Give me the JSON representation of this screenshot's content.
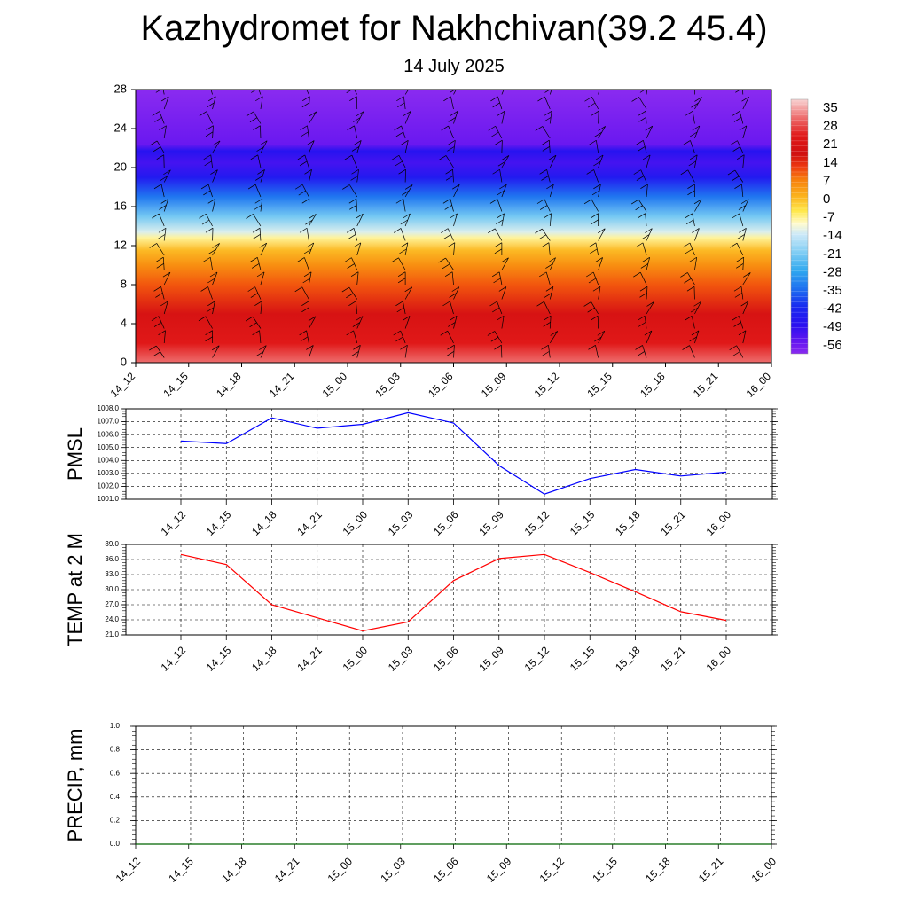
{
  "header": {
    "title": "Kazhydromet for Nakhchivan(39.2 45.4)",
    "subtitle": "14 July 2025"
  },
  "colors": {
    "pmsl_line": "#0000ff",
    "temp_line": "#ff0000",
    "precip_line": "#006400",
    "grid": "#000000"
  },
  "chart_data": [
    {
      "id": "cross_section",
      "type": "heatmap",
      "title": "",
      "x_ticklabels": [
        "14_12",
        "14_15",
        "14_18",
        "14_21",
        "15_00",
        "15_03",
        "15_06",
        "15_09",
        "15_12",
        "15_15",
        "15_18",
        "15_21",
        "16_00"
      ],
      "y_ticks": [
        0,
        4,
        8,
        12,
        16,
        20,
        24,
        28
      ],
      "ylim": [
        0,
        28
      ],
      "colorbar_labels": [
        "35",
        "28",
        "21",
        "14",
        "7",
        "0",
        "-7",
        "-14",
        "-21",
        "-28",
        "-35",
        "-42",
        "-49",
        "-56"
      ],
      "colorbar_range": [
        -60,
        38
      ],
      "colorbar_stops": [
        {
          "value": 38,
          "color": "#f8d4d4"
        },
        {
          "value": 31,
          "color": "#ee6e6e"
        },
        {
          "value": 24,
          "color": "#e01818"
        },
        {
          "value": 17,
          "color": "#d01010"
        },
        {
          "value": 12,
          "color": "#ee3a10"
        },
        {
          "value": 7,
          "color": "#f77f0c"
        },
        {
          "value": 1,
          "color": "#fbb01c"
        },
        {
          "value": -5,
          "color": "#ffe84a"
        },
        {
          "value": -10,
          "color": "#fffbd0"
        },
        {
          "value": -14,
          "color": "#cde9f8"
        },
        {
          "value": -21,
          "color": "#7fcdf4"
        },
        {
          "value": -28,
          "color": "#2fa8ef"
        },
        {
          "value": -35,
          "color": "#1e6ff0"
        },
        {
          "value": -42,
          "color": "#1828f0"
        },
        {
          "value": -49,
          "color": "#2a10f0"
        },
        {
          "value": -56,
          "color": "#6a18f0"
        },
        {
          "value": -60,
          "color": "#8a2bf0"
        }
      ],
      "barb_columns": 13,
      "barb_levels": [
        0.5,
        2,
        3.5,
        5,
        6.5,
        8,
        9.5,
        11,
        12.5,
        14,
        15.5,
        17,
        18.5,
        20,
        21.5,
        23,
        24.5,
        26,
        27.5
      ]
    },
    {
      "id": "pmsl",
      "type": "line",
      "ylabel": "PMSL",
      "x_ticklabels": [
        "14_12",
        "14_15",
        "14_18",
        "14_21",
        "15_00",
        "15_03",
        "15_06",
        "15_09",
        "15_12",
        "15_15",
        "15_18",
        "15_21",
        "16_00"
      ],
      "y_ticklabels": [
        "1008.0",
        "1007.0",
        "1006.0",
        "1005.0",
        "1004.0",
        "1003.0",
        "1002.0",
        "1001.0"
      ],
      "ylim": [
        1001.0,
        1008.0
      ],
      "series": [
        {
          "values": [
            1005.5,
            1005.3,
            1007.3,
            1006.5,
            1006.8,
            1007.7,
            1006.9,
            1003.6,
            1001.4,
            1002.6,
            1003.3,
            1002.8,
            1003.1
          ]
        }
      ]
    },
    {
      "id": "temp",
      "type": "line",
      "ylabel": "TEMP at 2 M",
      "x_ticklabels": [
        "14_12",
        "14_15",
        "14_18",
        "14_21",
        "15_00",
        "15_03",
        "15_06",
        "15_09",
        "15_12",
        "15_15",
        "15_18",
        "15_21",
        "16_00"
      ],
      "y_ticklabels": [
        "39.0",
        "36.0",
        "33.0",
        "30.0",
        "27.0",
        "24.0",
        "21.0"
      ],
      "ylim": [
        21.0,
        39.0
      ],
      "series": [
        {
          "values": [
            37.0,
            35.0,
            27.0,
            24.4,
            21.8,
            23.6,
            31.8,
            36.2,
            37.0,
            33.4,
            29.6,
            25.6,
            23.9
          ]
        }
      ]
    },
    {
      "id": "precip",
      "type": "line",
      "ylabel": "PRECIP, mm",
      "x_ticklabels": [
        "14_12",
        "14_15",
        "14_18",
        "14_21",
        "15_00",
        "15_03",
        "15_06",
        "15_09",
        "15_12",
        "15_15",
        "15_18",
        "15_21",
        "16_00"
      ],
      "y_ticklabels": [
        "1.0",
        "0.8",
        "0.6",
        "0.4",
        "0.2",
        "0.0"
      ],
      "ylim": [
        0.0,
        1.0
      ],
      "series": [
        {
          "values": [
            0,
            0,
            0,
            0,
            0,
            0,
            0,
            0,
            0,
            0,
            0,
            0,
            0
          ]
        }
      ]
    }
  ]
}
